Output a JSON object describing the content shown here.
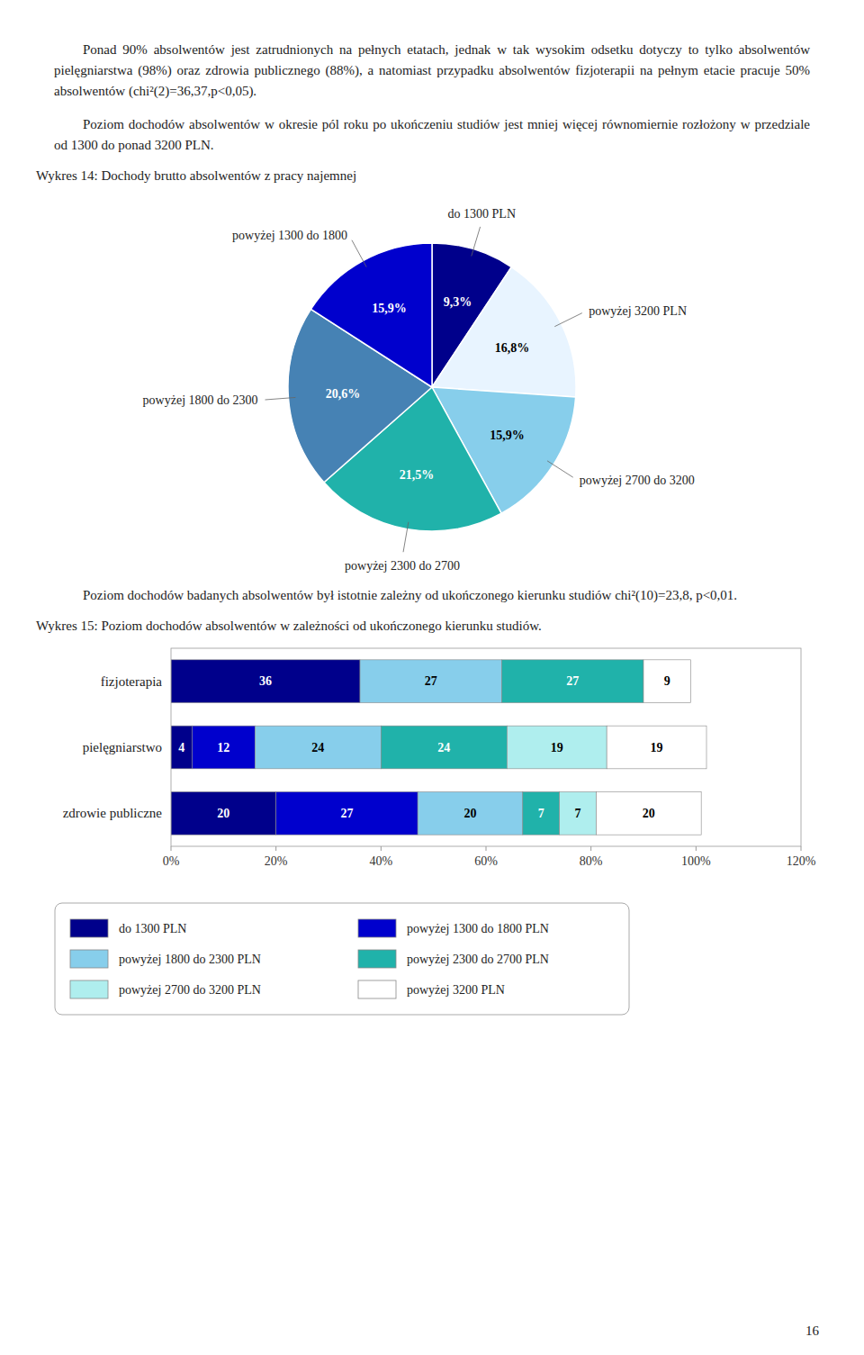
{
  "paragraphs": [
    "Ponad 90% absolwentów jest zatrudnionych na pełnych etatach, jednak w tak wysokim odsetku dotyczy to tylko absolwentów pielęgniarstwa (98%) oraz zdrowia publicznego (88%), a natomiast przypadku absolwentów fizjoterapii na pełnym etacie pracuje 50% absolwentów (chi²(2)=36,37,p<0,05).",
    "Poziom dochodów absolwentów w okresie pól roku po ukończeniu studiów jest mniej więcej równomiernie rozłożony w przedziale od 1300 do ponad 3200 PLN.",
    "Poziom dochodów badanych absolwentów był istotnie zależny od ukończonego kierunku studiów chi²(10)=23,8, p<0,01."
  ],
  "chart_data": [
    {
      "type": "pie",
      "title": "Wykres 14: Dochody brutto absolwentów z pracy najemnej",
      "categories": [
        "do 1300 PLN",
        "powyżej 3200 PLN",
        "powyżej 2700 do 3200",
        "powyżej 2300 do 2700",
        "powyżej 1800 do 2300",
        "powyżej 1300 do 1800"
      ],
      "values": [
        9.3,
        16.8,
        15.9,
        21.5,
        20.6,
        15.9
      ],
      "value_labels": [
        "9,3%",
        "16,8%",
        "15,9%",
        "21,5%",
        "20,6%",
        "15,9%"
      ],
      "colors": [
        "#00008B",
        "#E8F4FF",
        "#87CEEB",
        "#20B2AA",
        "#4682B4",
        "#0000CD"
      ],
      "data_labels": true
    },
    {
      "type": "bar",
      "title": "Wykres 15: Poziom dochodów absolwentów w zależności od ukończonego kierunku studiów.",
      "orientation": "horizontal",
      "stacked": true,
      "categories": [
        "fizjoterapia",
        "pielęgniarstwo",
        "zdrowie publiczne"
      ],
      "series": [
        {
          "name": "do 1300 PLN",
          "color": "#00008B",
          "values": [
            36,
            4,
            20
          ]
        },
        {
          "name": "powyżej 1300 do 1800 PLN",
          "color": "#0000CD",
          "values": [
            0,
            12,
            27
          ]
        },
        {
          "name": "powyżej 1800 do 2300 PLN",
          "color": "#87CEEB",
          "values": [
            27,
            24,
            20
          ]
        },
        {
          "name": "powyżej 2300 do 2700 PLN",
          "color": "#20B2AA",
          "values": [
            27,
            24,
            7
          ]
        },
        {
          "name": "powyżej 2700 do 3200 PLN",
          "color": "#AFEEEE",
          "values": [
            0,
            19,
            7
          ]
        },
        {
          "name": "powyżej 3200 PLN",
          "color": "#FFFFFF",
          "values": [
            9,
            19,
            20
          ]
        }
      ],
      "xlim": [
        0,
        120
      ],
      "xticks": [
        {
          "value": 0,
          "label": "0%"
        },
        {
          "value": 20,
          "label": "20%"
        },
        {
          "value": 40,
          "label": "40%"
        },
        {
          "value": 60,
          "label": "60%"
        },
        {
          "value": 80,
          "label": "80%"
        },
        {
          "value": 100,
          "label": "100%"
        },
        {
          "value": 120,
          "label": "120%"
        }
      ],
      "grid": false,
      "legend": "bottom",
      "data_labels": true
    }
  ],
  "page_number": "16"
}
